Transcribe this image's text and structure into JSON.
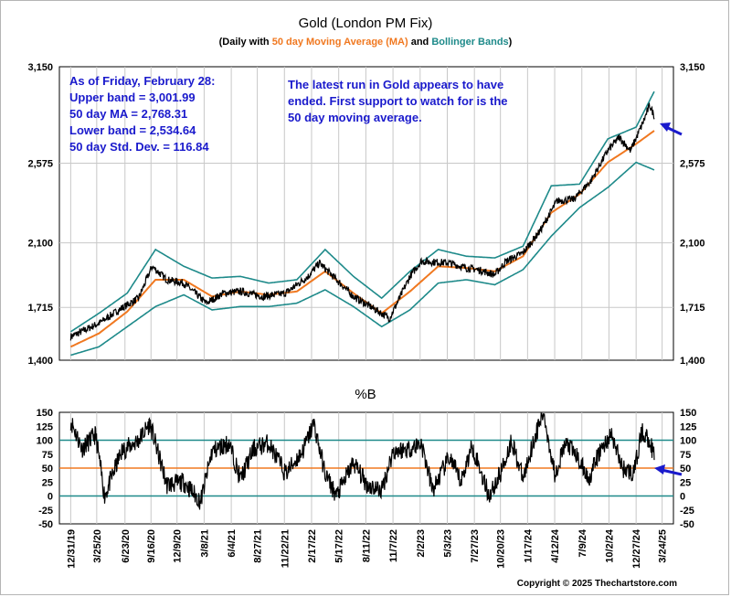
{
  "chart_data": [
    {
      "type": "line",
      "title": "Gold (London PM Fix)",
      "subtitle": {
        "open": "(Daily with ",
        "ma": "50 day Moving Average (MA)",
        "and": " and ",
        "bb": "Bollinger Bands",
        "close": ")"
      },
      "ylim": [
        1400,
        3150
      ],
      "yticks": [
        "1,400",
        "1,715",
        "2,100",
        "2,575",
        "3,150"
      ],
      "ytick_values": [
        1400,
        1715,
        2100,
        2575,
        3150
      ],
      "grid": true,
      "stats_box": [
        "As of Friday, February 28:",
        "Upper band = 3,001.99",
        "50 day MA = 2,768.31",
        "Lower band = 2,534.64",
        "50 day Std. Dev. = 116.84"
      ],
      "annotation": [
        "The latest run in Gold appears to have",
        "ended.  First support to watch for is the",
        "50 day moving average."
      ],
      "colors": {
        "price": "#000000",
        "ma": "#f07820",
        "bands": "#1e8a8a",
        "text_blue": "#1a1acc",
        "arrow": "#1a1acc",
        "grid": "#c8c8c8"
      },
      "x_keys": [
        2020.0,
        2020.25,
        2020.45,
        2020.6,
        2020.72,
        2020.85,
        2021.0,
        2021.2,
        2021.35,
        2021.5,
        2021.7,
        2021.9,
        2022.1,
        2022.2,
        2022.35,
        2022.5,
        2022.65,
        2022.82,
        2022.9,
        2023.0,
        2023.1,
        2023.35,
        2023.5,
        2023.6,
        2023.75,
        2023.85,
        2024.0,
        2024.15,
        2024.3,
        2024.45,
        2024.6,
        2024.75,
        2024.85,
        2024.95,
        2025.05,
        2025.12,
        2025.16
      ],
      "price_keys": [
        1540,
        1620,
        1710,
        1770,
        1960,
        1880,
        1860,
        1740,
        1800,
        1810,
        1780,
        1800,
        1900,
        1980,
        1880,
        1780,
        1720,
        1650,
        1760,
        1900,
        1990,
        1980,
        1950,
        1940,
        1910,
        1990,
        2040,
        2170,
        2350,
        2360,
        2470,
        2650,
        2730,
        2650,
        2800,
        2920,
        2858
      ],
      "series": [
        {
          "name": "Price",
          "x": [
            2020.0,
            2020.25,
            2020.45,
            2020.6,
            2020.72,
            2020.85,
            2021.0,
            2021.2,
            2021.35,
            2021.5,
            2021.7,
            2021.9,
            2022.1,
            2022.2,
            2022.35,
            2022.5,
            2022.65,
            2022.82,
            2022.9,
            2023.0,
            2023.1,
            2023.35,
            2023.5,
            2023.6,
            2023.75,
            2023.85,
            2024.0,
            2024.15,
            2024.3,
            2024.45,
            2024.6,
            2024.75,
            2024.85,
            2024.95,
            2025.05,
            2025.12,
            2025.16
          ],
          "y": [
            1540,
            1620,
            1710,
            1770,
            1960,
            1880,
            1860,
            1740,
            1800,
            1810,
            1780,
            1800,
            1900,
            1980,
            1880,
            1780,
            1720,
            1650,
            1760,
            1900,
            1990,
            1980,
            1950,
            1940,
            1910,
            1990,
            2040,
            2170,
            2350,
            2360,
            2470,
            2650,
            2730,
            2650,
            2800,
            2920,
            2858
          ]
        },
        {
          "name": "50 day Moving Average (MA)",
          "x": [
            2020.0,
            2020.25,
            2020.5,
            2020.75,
            2021.0,
            2021.25,
            2021.5,
            2021.75,
            2022.0,
            2022.25,
            2022.5,
            2022.75,
            2023.0,
            2023.25,
            2023.5,
            2023.75,
            2024.0,
            2024.25,
            2024.5,
            2024.75,
            2025.0,
            2025.16
          ],
          "y": [
            1480,
            1560,
            1690,
            1880,
            1880,
            1780,
            1810,
            1790,
            1810,
            1930,
            1800,
            1680,
            1810,
            1960,
            1950,
            1930,
            2020,
            2280,
            2390,
            2580,
            2690,
            2768.31
          ]
        },
        {
          "name": "Upper band",
          "x": [
            2020.0,
            2020.25,
            2020.5,
            2020.75,
            2021.0,
            2021.25,
            2021.5,
            2021.75,
            2022.0,
            2022.25,
            2022.5,
            2022.75,
            2023.0,
            2023.25,
            2023.5,
            2023.75,
            2024.0,
            2024.25,
            2024.5,
            2024.75,
            2025.0,
            2025.16
          ],
          "y": [
            1570,
            1680,
            1800,
            2060,
            1960,
            1890,
            1900,
            1860,
            1880,
            2060,
            1900,
            1770,
            1930,
            2060,
            2020,
            2010,
            2080,
            2440,
            2450,
            2720,
            2790,
            3001.99
          ]
        },
        {
          "name": "Lower band",
          "x": [
            2020.0,
            2020.25,
            2020.5,
            2020.75,
            2021.0,
            2021.25,
            2021.5,
            2021.75,
            2022.0,
            2022.25,
            2022.5,
            2022.75,
            2023.0,
            2023.25,
            2023.5,
            2023.75,
            2024.0,
            2024.25,
            2024.5,
            2024.75,
            2025.0,
            2025.16
          ],
          "y": [
            1430,
            1480,
            1600,
            1720,
            1790,
            1700,
            1720,
            1720,
            1740,
            1820,
            1720,
            1600,
            1700,
            1860,
            1880,
            1850,
            1940,
            2140,
            2310,
            2430,
            2580,
            2534.64
          ]
        }
      ]
    },
    {
      "type": "line",
      "title": "%B",
      "ylim": [
        -50,
        150
      ],
      "yticks": [
        "-50",
        "-25",
        "0",
        "25",
        "50",
        "75",
        "100",
        "125",
        "150"
      ],
      "ytick_values": [
        -50,
        -25,
        0,
        25,
        50,
        75,
        100,
        125,
        150
      ],
      "reference_lines": [
        0,
        50,
        100
      ],
      "x_keys": [
        2020.0,
        2020.1,
        2020.22,
        2020.3,
        2020.45,
        2020.6,
        2020.7,
        2020.85,
        2021.0,
        2021.15,
        2021.25,
        2021.4,
        2021.5,
        2021.62,
        2021.75,
        2021.9,
        2022.05,
        2022.15,
        2022.25,
        2022.35,
        2022.5,
        2022.62,
        2022.75,
        2022.85,
        2023.0,
        2023.1,
        2023.2,
        2023.35,
        2023.45,
        2023.55,
        2023.7,
        2023.8,
        2023.9,
        2024.0,
        2024.08,
        2024.18,
        2024.28,
        2024.38,
        2024.48,
        2024.58,
        2024.68,
        2024.78,
        2024.88,
        2024.98,
        2025.05,
        2025.12,
        2025.16
      ],
      "values": [
        135,
        85,
        110,
        0,
        80,
        100,
        130,
        20,
        25,
        -10,
        80,
        95,
        30,
        85,
        95,
        40,
        80,
        130,
        40,
        0,
        60,
        20,
        10,
        80,
        85,
        95,
        10,
        70,
        25,
        90,
        0,
        40,
        100,
        30,
        90,
        150,
        40,
        95,
        70,
        30,
        80,
        110,
        50,
        40,
        115,
        100,
        70
      ],
      "xtick_labels": [
        "12/31/19",
        "3/25/20",
        "6/23/20",
        "9/16/20",
        "12/9/20",
        "3/8/21",
        "6/4/21",
        "8/27/21",
        "11/22/21",
        "2/17/22",
        "5/17/22",
        "8/11/22",
        "11/7/22",
        "2/2/23",
        "5/3/23",
        "7/27/23",
        "10/20/23",
        "1/17/24",
        "4/12/24",
        "7/9/24",
        "10/2/24",
        "12/27/24",
        "3/24/25"
      ],
      "xtick_values": [
        2020.0,
        2020.23,
        2020.48,
        2020.71,
        2020.94,
        2021.18,
        2021.42,
        2021.65,
        2021.89,
        2022.13,
        2022.37,
        2022.61,
        2022.85,
        2023.09,
        2023.33,
        2023.57,
        2023.8,
        2024.04,
        2024.28,
        2024.52,
        2024.76,
        2025.0,
        2025.23
      ],
      "x_range": [
        2019.9,
        2025.33
      ]
    }
  ],
  "footer": {
    "copyright": "Copyright © 2025 Thechartstore.com"
  }
}
